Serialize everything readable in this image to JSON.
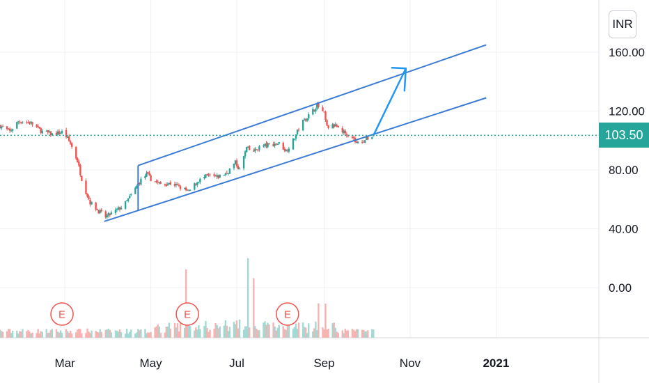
{
  "currency": "INR",
  "last_price_label": "103.50",
  "colors": {
    "up": "#26a69a",
    "down": "#ef5350",
    "trendline": "#3a7bd5",
    "arrow": "#2196f3",
    "price_line": "#26a69a",
    "grid": "#eef0f3"
  },
  "earnings_marker_label": "E",
  "chart_data": {
    "type": "candlestick",
    "title": "",
    "xlabel": "",
    "ylabel": "",
    "ylim": [
      0,
      175
    ],
    "y_ticks": [
      0,
      40,
      80,
      120,
      160
    ],
    "y_tick_labels": [
      "0.00",
      "40.00",
      "80.00",
      "120.00",
      "160.00"
    ],
    "x_tick_labels": [
      {
        "label": "Mar",
        "date": "2020-03-01",
        "bold": false
      },
      {
        "label": "May",
        "date": "2020-05-01",
        "bold": false
      },
      {
        "label": "Jul",
        "date": "2020-07-01",
        "bold": false
      },
      {
        "label": "Sep",
        "date": "2020-09-01",
        "bold": false
      },
      {
        "label": "Nov",
        "date": "2020-11-01",
        "bold": false
      },
      {
        "label": "2021",
        "date": "2021-01-01",
        "bold": true
      }
    ],
    "x_range": [
      "2020-01-15",
      "2021-03-10"
    ],
    "price_anchors": [
      [
        "2020-01-15",
        110
      ],
      [
        "2020-01-22",
        106
      ],
      [
        "2020-01-28",
        113
      ],
      [
        "2020-02-06",
        112
      ],
      [
        "2020-02-14",
        106
      ],
      [
        "2020-02-22",
        104
      ],
      [
        "2020-02-29",
        106
      ],
      [
        "2020-03-05",
        98
      ],
      [
        "2020-03-10",
        86
      ],
      [
        "2020-03-14",
        70
      ],
      [
        "2020-03-19",
        58
      ],
      [
        "2020-03-25",
        52
      ],
      [
        "2020-03-30",
        48
      ],
      [
        "2020-04-06",
        52
      ],
      [
        "2020-04-12",
        56
      ],
      [
        "2020-04-18",
        64
      ],
      [
        "2020-04-23",
        72
      ],
      [
        "2020-04-28",
        77
      ],
      [
        "2020-05-02",
        73
      ],
      [
        "2020-05-09",
        70
      ],
      [
        "2020-05-16",
        71
      ],
      [
        "2020-05-22",
        68
      ],
      [
        "2020-05-28",
        65
      ],
      [
        "2020-06-03",
        72
      ],
      [
        "2020-06-10",
        76
      ],
      [
        "2020-06-17",
        75
      ],
      [
        "2020-06-24",
        78
      ],
      [
        "2020-06-30",
        85
      ],
      [
        "2020-07-03",
        80
      ],
      [
        "2020-07-08",
        95
      ],
      [
        "2020-07-12",
        92
      ],
      [
        "2020-07-18",
        96
      ],
      [
        "2020-07-24",
        97
      ],
      [
        "2020-07-31",
        98
      ],
      [
        "2020-08-05",
        93
      ],
      [
        "2020-08-10",
        100
      ],
      [
        "2020-08-16",
        112
      ],
      [
        "2020-08-22",
        118
      ],
      [
        "2020-08-27",
        124
      ],
      [
        "2020-09-01",
        118
      ],
      [
        "2020-09-03",
        109
      ],
      [
        "2020-09-09",
        110
      ],
      [
        "2020-09-16",
        105
      ],
      [
        "2020-09-20",
        104
      ],
      [
        "2020-09-24",
        98
      ],
      [
        "2020-10-01",
        101
      ],
      [
        "2020-10-06",
        103.5
      ]
    ],
    "volume_spikes": [
      [
        "2020-05-26",
        100
      ],
      [
        "2020-07-01",
        26
      ],
      [
        "2020-07-09",
        120
      ],
      [
        "2020-07-13",
        80
      ],
      [
        "2020-07-26",
        75
      ],
      [
        "2020-08-15",
        60
      ],
      [
        "2020-08-28",
        45
      ],
      [
        "2020-09-02",
        40
      ]
    ],
    "last_price": 103.5,
    "earnings_dates": [
      "2020-02-28",
      "2020-05-27",
      "2020-08-06"
    ],
    "trend_channel": {
      "upper": [
        [
          "2020-04-22",
          83
        ],
        [
          "2020-12-25",
          165
        ]
      ],
      "lower": [
        [
          "2020-03-29",
          45
        ],
        [
          "2020-12-25",
          129
        ]
      ]
    },
    "projection_arrow": [
      [
        "2020-10-06",
        103.5
      ],
      [
        "2020-10-29",
        149
      ]
    ]
  }
}
